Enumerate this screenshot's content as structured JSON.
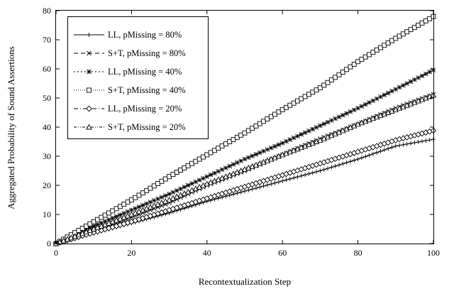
{
  "chart_data": {
    "type": "line",
    "title": "",
    "xlabel": "Recontextualization Step",
    "ylabel": "Aggregated Probability of Sound Assertions",
    "xlim": [
      0,
      100
    ],
    "ylim": [
      0,
      80
    ],
    "xticks": [
      0,
      20,
      40,
      60,
      80,
      100
    ],
    "yticks": [
      0,
      10,
      20,
      30,
      40,
      50,
      60,
      70,
      80
    ],
    "grid": false,
    "legend_position": "top-left",
    "series": [
      {
        "name": "LL, pMissing = 80%",
        "marker": "plus",
        "x": [
          0,
          10,
          20,
          30,
          40,
          50,
          60,
          70,
          80,
          90,
          100
        ],
        "y": [
          0,
          3.5,
          7,
          10.5,
          14.5,
          18,
          21.5,
          25,
          29,
          33.5,
          35.8
        ]
      },
      {
        "name": "S+T, pMissing = 80%",
        "marker": "x",
        "x": [
          0,
          10,
          20,
          30,
          40,
          50,
          60,
          70,
          80,
          90,
          100
        ],
        "y": [
          0,
          4.5,
          9,
          14,
          20,
          25,
          30.5,
          36,
          41,
          46.5,
          51.2
        ]
      },
      {
        "name": "LL, pMissing = 40%",
        "marker": "star",
        "x": [
          0,
          10,
          20,
          30,
          40,
          50,
          60,
          70,
          80,
          90,
          100
        ],
        "y": [
          0,
          6,
          11.5,
          17,
          23,
          29,
          34.5,
          40.5,
          46.5,
          53,
          59.6
        ]
      },
      {
        "name": "S+T, pMissing = 40%",
        "marker": "square",
        "x": [
          0,
          10,
          20,
          30,
          40,
          50,
          60,
          70,
          80,
          90,
          100
        ],
        "y": [
          0,
          7.5,
          15,
          23,
          30.5,
          38,
          46,
          53.5,
          62.5,
          70.5,
          78
        ]
      },
      {
        "name": "LL, pMissing = 20%",
        "marker": "diamond",
        "x": [
          0,
          10,
          20,
          30,
          40,
          50,
          60,
          70,
          80,
          90,
          100
        ],
        "y": [
          0,
          3.8,
          7.5,
          11.5,
          15.5,
          19.5,
          23.5,
          27.5,
          31.5,
          35.5,
          38.8
        ]
      },
      {
        "name": "S+T, pMissing = 20%",
        "marker": "triangle",
        "x": [
          0,
          10,
          20,
          30,
          40,
          50,
          60,
          70,
          80,
          90,
          100
        ],
        "y": [
          0,
          5,
          10,
          15,
          20.5,
          25.5,
          30.5,
          35.5,
          41,
          46,
          51
        ]
      }
    ]
  }
}
